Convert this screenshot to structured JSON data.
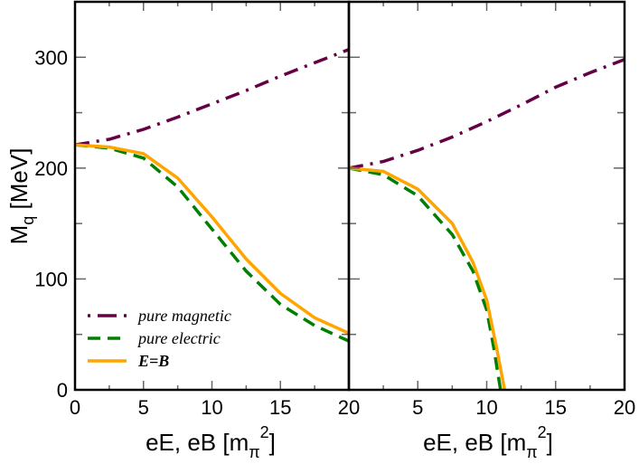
{
  "chart_data": [
    {
      "type": "line",
      "panel": "left",
      "xlabel": "eE, eB [m_π^2]",
      "ylabel": "M_q [MeV]",
      "xlim": [
        0,
        20
      ],
      "ylim": [
        0,
        350
      ],
      "xticks": [
        0,
        5,
        10,
        15,
        20
      ],
      "yticks": [
        0,
        100,
        200,
        300
      ],
      "grid": false,
      "legend": "bottom-left",
      "series": [
        {
          "name": "pure magnetic",
          "color": "#660044",
          "style": "dash-dot",
          "x": [
            0,
            2.5,
            5,
            7.5,
            10,
            12.5,
            15,
            17.5,
            20
          ],
          "y": [
            221,
            226,
            235,
            246,
            258,
            270,
            283,
            295,
            307
          ]
        },
        {
          "name": "pure electric",
          "color": "#008000",
          "style": "dashed",
          "x": [
            0,
            2.5,
            5,
            7.5,
            10,
            12.5,
            15,
            17.5,
            20
          ],
          "y": [
            221,
            218,
            209,
            183,
            145,
            107,
            77,
            58,
            44
          ]
        },
        {
          "name": "E=B",
          "color": "#ffa500",
          "style": "solid",
          "x": [
            0,
            2.5,
            5,
            7.5,
            10,
            12.5,
            15,
            17.5,
            20
          ],
          "y": [
            221,
            219,
            213,
            191,
            156,
            118,
            87,
            65,
            51
          ]
        }
      ]
    },
    {
      "type": "line",
      "panel": "right",
      "xlabel": "eE, eB [m_π^2]",
      "xlim": [
        0,
        20
      ],
      "ylim": [
        0,
        350
      ],
      "xticks": [
        5,
        10,
        15,
        20
      ],
      "grid": false,
      "series": [
        {
          "color": "#660044",
          "style": "dash-dot",
          "x": [
            0,
            2.5,
            5,
            7.5,
            10,
            12.5,
            15,
            17.5,
            20
          ],
          "y": [
            200,
            206,
            216,
            228,
            242,
            257,
            273,
            286,
            298
          ]
        },
        {
          "color": "#008000",
          "style": "dashed",
          "x": [
            0,
            2.5,
            5,
            7.5,
            9,
            10,
            10.5,
            11
          ],
          "y": [
            200,
            194,
            175,
            140,
            107,
            72,
            39,
            0
          ]
        },
        {
          "color": "#ffa500",
          "style": "solid",
          "x": [
            0,
            2.5,
            5,
            7.5,
            9,
            10,
            10.7,
            11.3
          ],
          "y": [
            200,
            197,
            181,
            150,
            115,
            81,
            39,
            0
          ]
        }
      ]
    }
  ],
  "labels": {
    "ylabel_main": "M",
    "ylabel_sub": "q",
    "ylabel_rest": " [MeV]",
    "xlabel_main": "eE, eB [m",
    "xlabel_sub": "π",
    "xlabel_sup": "2",
    "xlabel_end": "]"
  }
}
